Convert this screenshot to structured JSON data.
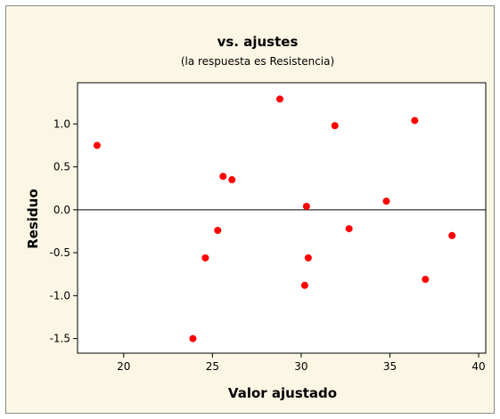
{
  "chart_data": {
    "type": "scatter",
    "title": "vs. ajustes",
    "subtitle": "(la respuesta es Resistencia)",
    "xlabel": "Valor ajustado",
    "ylabel": "Residuo",
    "xlim": [
      17.4,
      40.4
    ],
    "ylim": [
      -1.67,
      1.48
    ],
    "x_ticks": [
      20,
      25,
      30,
      35,
      40
    ],
    "x_tick_labels": [
      "20",
      "25",
      "30",
      "35",
      "40"
    ],
    "y_ticks": [
      -1.5,
      -1.0,
      -0.5,
      0.0,
      0.5,
      1.0
    ],
    "y_tick_labels": [
      "-1.5",
      "-1.0",
      "-0.5",
      "0.0",
      "0.5",
      "1.0"
    ],
    "reference_line_y": 0,
    "grid": false,
    "marker_color": "#ff0000",
    "background_color": "#fcf7e4",
    "plot_area_color": "#ffffff",
    "points": [
      {
        "x": 18.5,
        "y": 0.75
      },
      {
        "x": 23.9,
        "y": -1.5
      },
      {
        "x": 24.6,
        "y": -0.56
      },
      {
        "x": 25.3,
        "y": -0.24
      },
      {
        "x": 25.6,
        "y": 0.39
      },
      {
        "x": 26.1,
        "y": 0.35
      },
      {
        "x": 28.8,
        "y": 1.29
      },
      {
        "x": 30.2,
        "y": -0.88
      },
      {
        "x": 30.3,
        "y": 0.04
      },
      {
        "x": 30.4,
        "y": -0.56
      },
      {
        "x": 31.9,
        "y": 0.98
      },
      {
        "x": 32.7,
        "y": -0.22
      },
      {
        "x": 34.8,
        "y": 0.1
      },
      {
        "x": 36.4,
        "y": 1.04
      },
      {
        "x": 37.0,
        "y": -0.81
      },
      {
        "x": 38.5,
        "y": -0.3
      }
    ]
  }
}
